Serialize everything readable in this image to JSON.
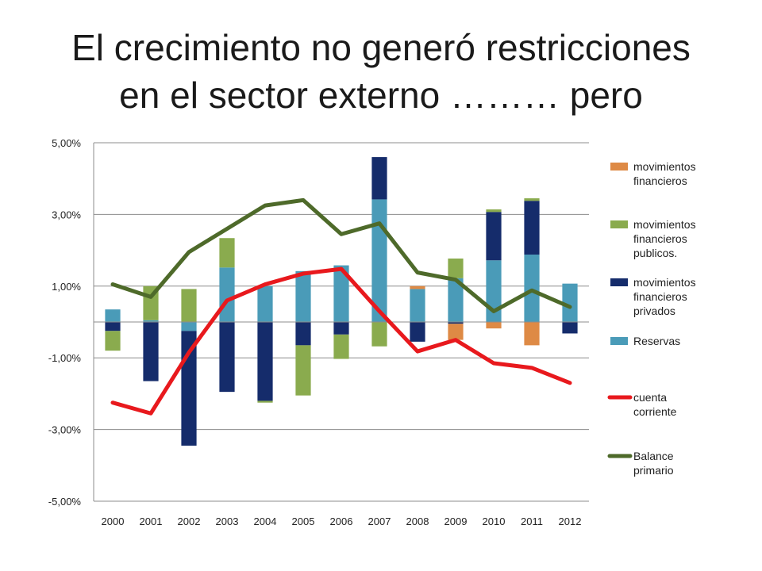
{
  "slide": {
    "title_line1": "El crecimiento no generó restricciones",
    "title_line2": "en el sector externo ……… pero"
  },
  "chart_data": {
    "type": "bar",
    "stacked": true,
    "categories": [
      "2000",
      "2001",
      "2002",
      "2003",
      "2004",
      "2005",
      "2006",
      "2007",
      "2008",
      "2009",
      "2010",
      "2011",
      "2012"
    ],
    "ylim": [
      -5,
      5
    ],
    "yticks": [
      5,
      3,
      1,
      -1,
      -3,
      -5
    ],
    "ytick_labels": [
      "5,00%",
      "3,00%",
      "1,00%",
      "-1,00%",
      "-3,00%",
      "-5,00%"
    ],
    "grid": true,
    "legend_position": "right",
    "bar_series": [
      {
        "name_lines": [
          "Reservas"
        ],
        "color": "#4a9bb8",
        "values": [
          0.35,
          0.05,
          -0.25,
          1.52,
          1.0,
          1.42,
          1.58,
          3.42,
          0.92,
          1.22,
          1.72,
          1.88,
          1.07
        ]
      },
      {
        "name_lines": [
          "movimientos",
          "financieros",
          "privados"
        ],
        "color": "#152c6b",
        "values": [
          -0.25,
          -1.65,
          -3.2,
          -1.95,
          -2.2,
          -0.65,
          -0.35,
          1.18,
          -0.55,
          -0.05,
          1.35,
          1.5,
          -0.32
        ]
      },
      {
        "name_lines": [
          "movimientos",
          "financieros",
          "publicos."
        ],
        "color": "#8aab4e",
        "values": [
          -0.55,
          0.95,
          0.92,
          0.82,
          -0.05,
          -1.4,
          -0.68,
          -0.68,
          0.0,
          0.55,
          0.07,
          0.07,
          0.0
        ]
      },
      {
        "name_lines": [
          "movimientos",
          "financieros"
        ],
        "color": "#de8a45",
        "values": [
          0.0,
          0.0,
          0.0,
          0.0,
          0.0,
          0.0,
          0.0,
          0.0,
          0.08,
          -0.45,
          -0.18,
          -0.65,
          0.0
        ]
      }
    ],
    "line_series": [
      {
        "name_lines": [
          "cuenta",
          "corriente"
        ],
        "color": "#e8191d",
        "values": [
          -2.25,
          -2.55,
          -0.85,
          0.6,
          1.05,
          1.35,
          1.48,
          0.3,
          -0.82,
          -0.5,
          -1.15,
          -1.28,
          -1.7
        ]
      },
      {
        "name_lines": [
          "Balance",
          "primario"
        ],
        "color": "#4e6a2a",
        "values": [
          1.05,
          0.7,
          1.95,
          2.6,
          3.25,
          3.4,
          2.45,
          2.75,
          1.38,
          1.18,
          0.3,
          0.88,
          0.42
        ]
      }
    ]
  }
}
